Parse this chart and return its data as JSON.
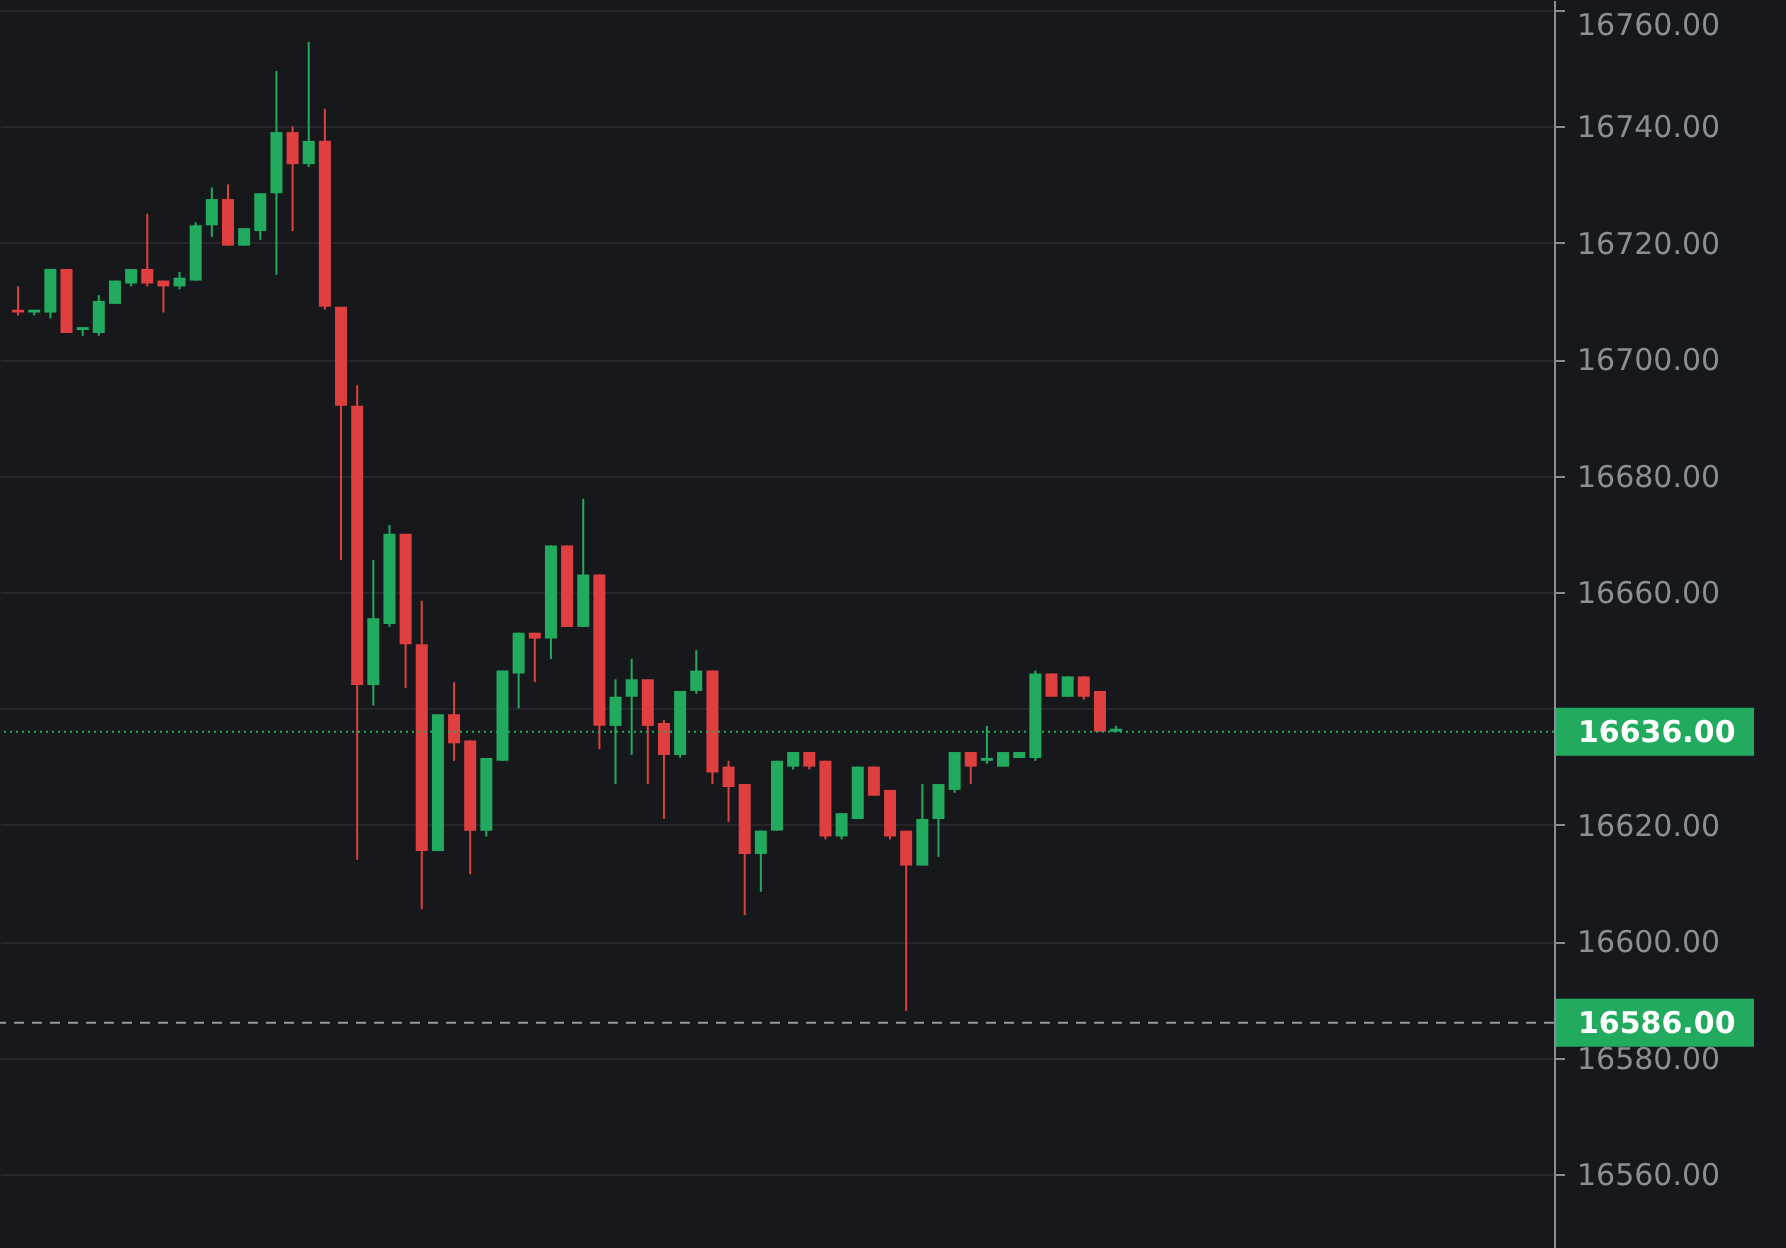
{
  "chart_data": {
    "type": "candlestick",
    "categories": [
      null,
      null,
      null,
      null,
      null,
      null,
      null,
      null,
      null,
      null,
      null,
      null,
      null,
      null,
      null,
      null,
      null,
      null,
      null,
      null,
      null,
      null,
      null,
      null,
      null,
      null,
      null,
      null,
      null,
      null,
      null,
      null,
      null,
      null,
      null,
      null,
      null,
      null,
      null,
      null,
      null,
      null,
      null,
      null,
      null,
      null,
      null,
      null,
      null,
      null,
      null,
      null,
      null,
      null,
      null,
      null,
      null,
      null,
      null,
      null,
      null,
      null,
      null,
      null,
      null,
      null,
      null,
      null,
      null,
      null,
      null,
      null,
      null,
      null,
      null,
      null,
      null,
      null,
      null,
      null,
      null,
      null,
      null,
      null,
      null,
      null,
      null,
      null,
      null,
      null,
      null,
      null,
      null,
      null,
      null
    ],
    "ohlc": [
      [
        16708.5,
        16712.5,
        16707.5,
        16708
      ],
      [
        16708,
        16708.5,
        16707.5,
        16708.5
      ],
      [
        16708,
        16715.5,
        16707,
        16715.5
      ],
      [
        16715.5,
        16715.5,
        16704.5,
        16704.5
      ],
      [
        16705,
        16705.5,
        16704,
        16705.5
      ],
      [
        16704.5,
        16711,
        16704,
        16710
      ],
      [
        16709.5,
        16713.5,
        16709.5,
        16713.5
      ],
      [
        16713,
        16715.5,
        16712.5,
        16715.5
      ],
      [
        16715.5,
        16725,
        16712.5,
        16713
      ],
      [
        16713.5,
        16713.5,
        16708,
        16712.5
      ],
      [
        16712.5,
        16715,
        16712,
        16714
      ],
      [
        16713.5,
        16723.5,
        16713.5,
        16723
      ],
      [
        16723,
        16729.5,
        16721,
        16727.5
      ],
      [
        16727.5,
        16730,
        16719.5,
        16719.5
      ],
      [
        16719.5,
        16722.5,
        16719.5,
        16722.5
      ],
      [
        16722,
        16728.5,
        16720.5,
        16728.5
      ],
      [
        16728.5,
        16749.5,
        16714.5,
        16739
      ],
      [
        16739,
        16740,
        16722,
        16733.5
      ],
      [
        16733.5,
        16754.5,
        16733,
        16737.5
      ],
      [
        16737.5,
        16743,
        16708.5,
        16709
      ],
      [
        16709,
        16709,
        16665.5,
        16692
      ],
      [
        16692,
        16695.5,
        16614,
        16644
      ],
      [
        16644,
        16665.5,
        16640.5,
        16655.5
      ],
      [
        16654.5,
        16671.5,
        16654,
        16670
      ],
      [
        16670,
        16670,
        16643.5,
        16651
      ],
      [
        16651,
        16658.5,
        16605.5,
        16615.5
      ],
      [
        16615.5,
        16639,
        16615.5,
        16639
      ],
      [
        16639,
        16644.5,
        16631,
        16634
      ],
      [
        16634.5,
        16634.5,
        16611.5,
        16619
      ],
      [
        16619,
        16631.5,
        16618,
        16631.5
      ],
      [
        16631,
        16646.5,
        16631,
        16646.5
      ],
      [
        16646,
        16653,
        16640,
        16653
      ],
      [
        16653,
        16653,
        16644.5,
        16652
      ],
      [
        16652,
        16668,
        16648.5,
        16668
      ],
      [
        16668,
        16668,
        16654,
        16654
      ],
      [
        16654,
        16676,
        16654,
        16663
      ],
      [
        16663,
        16663,
        16633,
        16637
      ],
      [
        16637,
        16645,
        16627,
        16642
      ],
      [
        16642,
        16648.5,
        16632,
        16645
      ],
      [
        16645,
        16645,
        16627,
        16637
      ],
      [
        16637.5,
        16638,
        16621,
        16632
      ],
      [
        16632,
        16643,
        16631.5,
        16643
      ],
      [
        16643,
        16650,
        16642.5,
        16646.5
      ],
      [
        16646.5,
        16646.5,
        16627,
        16629
      ],
      [
        16630,
        16631,
        16620.5,
        16626.5
      ],
      [
        16627,
        16627,
        16604.5,
        16615
      ],
      [
        16615,
        16619,
        16608.5,
        16619
      ],
      [
        16619,
        16631,
        16619,
        16631
      ],
      [
        16630,
        16632.5,
        16629.5,
        16632.5
      ],
      [
        16632.5,
        16632.5,
        16629.5,
        16630
      ],
      [
        16631,
        16631,
        16617.5,
        16618
      ],
      [
        16618,
        16622,
        16617.5,
        16622
      ],
      [
        16621,
        16630,
        16621,
        16630
      ],
      [
        16630,
        16630,
        16625,
        16625
      ],
      [
        16626,
        16626,
        16617.5,
        16618
      ],
      [
        16619,
        16619,
        16588,
        16613
      ],
      [
        16613,
        16627,
        16613,
        16621
      ],
      [
        16621,
        16627,
        16614.5,
        16627
      ],
      [
        16626,
        16632.5,
        16625.5,
        16632.5
      ],
      [
        16632.5,
        16632.5,
        16627,
        16630
      ],
      [
        16631,
        16637,
        16630.5,
        16631.5
      ],
      [
        16630,
        16632.5,
        16630,
        16632.5
      ],
      [
        16631.5,
        16632.5,
        16631.5,
        16632.5
      ],
      [
        16631.5,
        16646.5,
        16631,
        16646
      ],
      [
        16646,
        16646,
        16642,
        16642
      ],
      [
        16642,
        16645.5,
        16642,
        16645.5
      ],
      [
        16645.5,
        16645.5,
        16641.5,
        16642
      ],
      [
        16643,
        16643,
        16636,
        16636
      ],
      [
        16636,
        16637,
        16636,
        16636.5
      ],
      null,
      null,
      null,
      null,
      null,
      null,
      null,
      null,
      null,
      null,
      null,
      null,
      null,
      null,
      null,
      null,
      null,
      null,
      null,
      null,
      null,
      null,
      null,
      null,
      null,
      null
    ],
    "colors": [
      "#e03f3f",
      "#22ab5e",
      "#22ab5e",
      "#e03f3f",
      "#22ab5e",
      "#22ab5e",
      "#22ab5e",
      "#22ab5e",
      "#e03f3f",
      "#e03f3f",
      "#22ab5e",
      "#22ab5e",
      "#22ab5e",
      "#e03f3f",
      "#22ab5e",
      "#22ab5e",
      "#22ab5e",
      "#e03f3f",
      "#22ab5e",
      "#e03f3f",
      "#e03f3f",
      "#e03f3f",
      "#22ab5e",
      "#22ab5e",
      "#e03f3f",
      "#e03f3f",
      "#22ab5e",
      "#e03f3f",
      "#e03f3f",
      "#22ab5e",
      "#22ab5e",
      "#22ab5e",
      "#e03f3f",
      "#22ab5e",
      "#e03f3f",
      "#22ab5e",
      "#e03f3f",
      "#22ab5e",
      "#22ab5e",
      "#e03f3f",
      "#e03f3f",
      "#22ab5e",
      "#22ab5e",
      "#e03f3f",
      "#e03f3f",
      "#e03f3f",
      "#22ab5e",
      "#22ab5e",
      "#22ab5e",
      "#e03f3f",
      "#e03f3f",
      "#22ab5e",
      "#22ab5e",
      "#e03f3f",
      "#e03f3f",
      "#e03f3f",
      "#22ab5e",
      "#22ab5e",
      "#22ab5e",
      "#e03f3f",
      "#22ab5e",
      "#22ab5e",
      "#22ab5e",
      "#22ab5e",
      "#e03f3f",
      "#22ab5e",
      "#e03f3f",
      "#e03f3f",
      "#22ab5e",
      null,
      null,
      null,
      null,
      null,
      null,
      null,
      null,
      null,
      null,
      null,
      null,
      null,
      null,
      null,
      null,
      null,
      null,
      null,
      null,
      null,
      null,
      null,
      null,
      null,
      null
    ],
    "ylim": [
      16547.3,
      16761.7
    ],
    "yticks": [
      {
        "value": 16560,
        "label": "16560.00"
      },
      {
        "value": 16580,
        "label": "16580.00"
      },
      {
        "value": 16600,
        "label": "16600.00"
      },
      {
        "value": 16620,
        "label": "16620.00"
      },
      {
        "value": 16640,
        "label": null
      },
      {
        "value": 16660,
        "label": "16660.00"
      },
      {
        "value": 16680,
        "label": "16680.00"
      },
      {
        "value": 16700,
        "label": "16700.00"
      },
      {
        "value": 16720,
        "label": "16720.00"
      },
      {
        "value": 16740,
        "label": "16740.00"
      },
      {
        "value": 16760,
        "label": "16760.00"
      }
    ],
    "grid": "y",
    "ref_lines": [
      {
        "axis": "y",
        "value": 16636,
        "label": "16636.00",
        "color": "#22ab5e",
        "line_style": "dotted"
      },
      {
        "axis": "y",
        "value": 16586,
        "label": "16586.00",
        "color": "#9598a1",
        "line_style": "dashed"
      }
    ]
  }
}
